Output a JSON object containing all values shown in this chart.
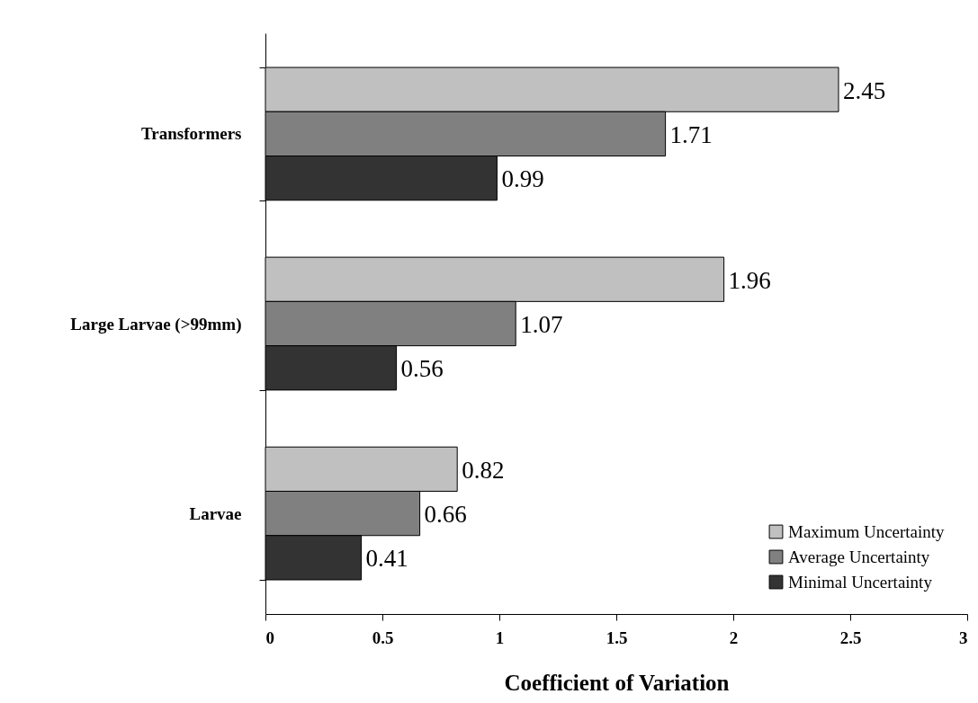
{
  "chart_data": {
    "type": "bar",
    "orientation": "horizontal",
    "xlabel": "Coefficient of Variation",
    "categories": [
      "Transformers",
      "Large Larvae (>99mm)",
      "Larvae"
    ],
    "series": [
      {
        "name": "Maximum Uncertainty",
        "color": "#c0c0c0",
        "values": [
          2.45,
          1.96,
          0.82
        ]
      },
      {
        "name": "Average Uncertainty",
        "color": "#808080",
        "values": [
          1.71,
          1.07,
          0.66
        ]
      },
      {
        "name": "Minimal Uncertainty",
        "color": "#333333",
        "values": [
          0.99,
          0.56,
          0.41
        ]
      }
    ],
    "xlim": [
      0,
      3
    ],
    "xticks": [
      0,
      0.5,
      1,
      1.5,
      2,
      2.5,
      3
    ],
    "grid": false,
    "legend": "bottom right",
    "data_labels": true
  }
}
